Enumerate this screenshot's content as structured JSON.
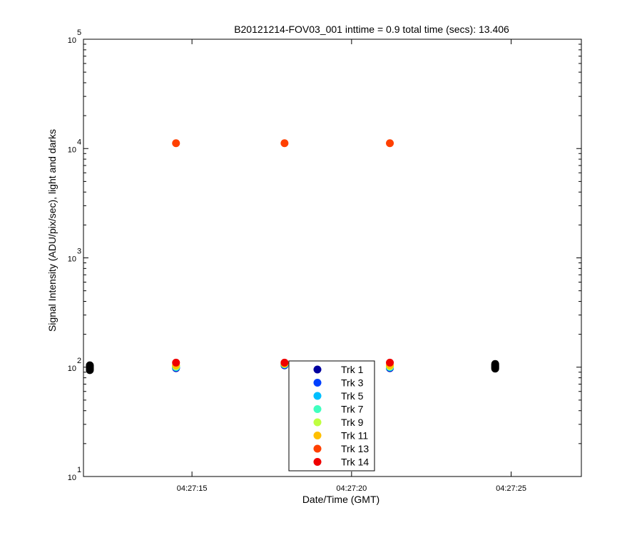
{
  "chart_data": {
    "type": "scatter",
    "title": "B20121214-FOV03_001 inttime = 0.9 total time (secs): 13.406",
    "xlabel": "Date/Time (GMT)",
    "ylabel": "Signal Intensity (ADU/pix/sec), light and darks",
    "x_axis": {
      "type": "time",
      "range": [
        "04:27:11.6",
        "04:27:27.2"
      ],
      "ticks": [
        "04:27:15",
        "04:27:20",
        "04:27:25"
      ]
    },
    "y_axis": {
      "scale": "log",
      "range": [
        10,
        100000
      ],
      "ticks": [
        {
          "base": "10",
          "exp": "1"
        },
        {
          "base": "10",
          "exp": "2"
        },
        {
          "base": "10",
          "exp": "3"
        },
        {
          "base": "10",
          "exp": "4"
        },
        {
          "base": "10",
          "exp": "5"
        }
      ]
    },
    "grid": false,
    "legend": {
      "placement": "bottom-center"
    },
    "series": [
      {
        "name": "Trk 1",
        "color": "#00009f",
        "points": [
          [
            "04:27:14.5",
            98
          ],
          [
            "04:27:17.9",
            104
          ],
          [
            "04:27:21.2",
            98
          ]
        ]
      },
      {
        "name": "Trk 3",
        "color": "#0040ff",
        "points": [
          [
            "04:27:14.5",
            99
          ],
          [
            "04:27:17.9",
            105
          ],
          [
            "04:27:21.2",
            99
          ]
        ]
      },
      {
        "name": "Trk 5",
        "color": "#00bfff",
        "points": [
          [
            "04:27:14.5",
            100
          ],
          [
            "04:27:17.9",
            106
          ],
          [
            "04:27:21.2",
            100
          ]
        ]
      },
      {
        "name": "Trk 7",
        "color": "#40ffbf",
        "points": [
          [
            "04:27:14.5",
            101
          ],
          [
            "04:27:17.9",
            107
          ],
          [
            "04:27:21.2",
            101
          ]
        ]
      },
      {
        "name": "Trk 9",
        "color": "#bfff40",
        "points": [
          [
            "04:27:14.5",
            102
          ],
          [
            "04:27:17.9",
            107
          ],
          [
            "04:27:21.2",
            102
          ]
        ]
      },
      {
        "name": "Trk 11",
        "color": "#ffbf00",
        "points": [
          [
            "04:27:14.5",
            104
          ],
          [
            "04:27:17.9",
            108
          ],
          [
            "04:27:21.2",
            104
          ]
        ]
      },
      {
        "name": "Trk 13",
        "color": "#ff4000",
        "points": [
          [
            "04:27:14.5",
            11200
          ],
          [
            "04:27:17.9",
            11200
          ],
          [
            "04:27:21.2",
            11200
          ]
        ]
      },
      {
        "name": "Trk 14",
        "color": "#ef0000",
        "points": [
          [
            "04:27:14.5",
            110
          ],
          [
            "04:27:17.9",
            110
          ],
          [
            "04:27:21.2",
            110
          ]
        ]
      }
    ],
    "darks": {
      "color": "#000000",
      "points": [
        [
          "04:27:11.8",
          94
        ],
        [
          "04:27:11.8",
          96
        ],
        [
          "04:27:11.8",
          98
        ],
        [
          "04:27:11.8",
          100
        ],
        [
          "04:27:11.8",
          102
        ],
        [
          "04:27:11.8",
          104
        ],
        [
          "04:27:24.5",
          97
        ],
        [
          "04:27:24.5",
          99
        ],
        [
          "04:27:24.5",
          101
        ],
        [
          "04:27:24.5",
          103
        ],
        [
          "04:27:24.5",
          105
        ],
        [
          "04:27:24.5",
          107
        ]
      ]
    }
  }
}
